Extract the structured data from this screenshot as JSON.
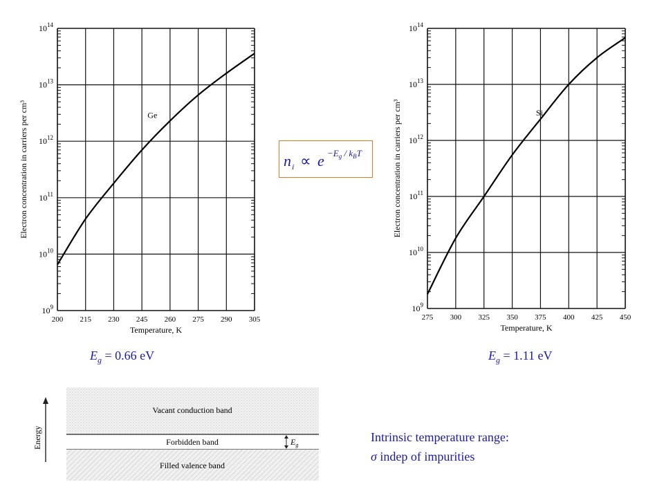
{
  "chart_data": [
    {
      "type": "line",
      "title": "",
      "xlabel": "Temperature, K",
      "ylabel": "Electron concentration in carriers per cm³",
      "yscale": "log",
      "xlim": [
        200,
        305
      ],
      "ylim": [
        1000000000.0,
        100000000000000.0
      ],
      "grid": true,
      "xticks": [
        "200",
        "215",
        "230",
        "245",
        "260",
        "275",
        "290",
        "305"
      ],
      "yticks": [
        "10^9",
        "10^10",
        "10^11",
        "10^12",
        "10^13",
        "10^14"
      ],
      "series": [
        {
          "name": "Ge",
          "x": [
            200,
            215,
            230,
            245,
            260,
            275,
            290,
            305
          ],
          "y": [
            6500000000.0,
            42000000000.0,
            180000000000.0,
            700000000000.0,
            2300000000000.0,
            6600000000000.0,
            16000000000000.0,
            36000000000000.0
          ]
        }
      ],
      "annotation": "Ge"
    },
    {
      "type": "line",
      "title": "",
      "xlabel": "Temperature, K",
      "ylabel": "Electron concentration in carriers per cm³",
      "yscale": "log",
      "xlim": [
        275,
        450
      ],
      "ylim": [
        1000000000.0,
        100000000000000.0
      ],
      "grid": true,
      "xticks": [
        "275",
        "300",
        "325",
        "350",
        "375",
        "400",
        "425",
        "450"
      ],
      "yticks": [
        "10^9",
        "10^10",
        "10^11",
        "10^12",
        "10^13",
        "10^14"
      ],
      "series": [
        {
          "name": "Si",
          "x": [
            275,
            300,
            325,
            350,
            375,
            400,
            425,
            450
          ],
          "y": [
            1800000000.0,
            18000000000.0,
            100000000000.0,
            550000000000.0,
            2400000000000.0,
            10000000000000.0,
            30000000000000.0,
            68000000000000.0
          ]
        }
      ],
      "annotation": "Si"
    }
  ],
  "captions": {
    "ge": {
      "symbol": "E",
      "sub": "g",
      "value": " = 0.66 eV"
    },
    "si": {
      "symbol": "E",
      "sub": "g",
      "value": " = 1.11 eV"
    }
  },
  "formula": {
    "n": "n",
    "n_sub": "i",
    "prop": "∝",
    "e": "e",
    "exponent": "−E",
    "exp_sub1": "g",
    "exp_mid": " / k",
    "exp_sub2": "B",
    "exp_end": "T"
  },
  "band_diagram": {
    "axis_label": "Energy",
    "conduction": "Vacant conduction band",
    "forbidden": "Forbidden band",
    "valence": "Filled valence band",
    "gap_symbol": "E",
    "gap_sub": "g"
  },
  "note": {
    "line1": "Intrinsic temperature range:",
    "line2_symbol": "σ",
    "line2_text": "  indep of impurities"
  }
}
